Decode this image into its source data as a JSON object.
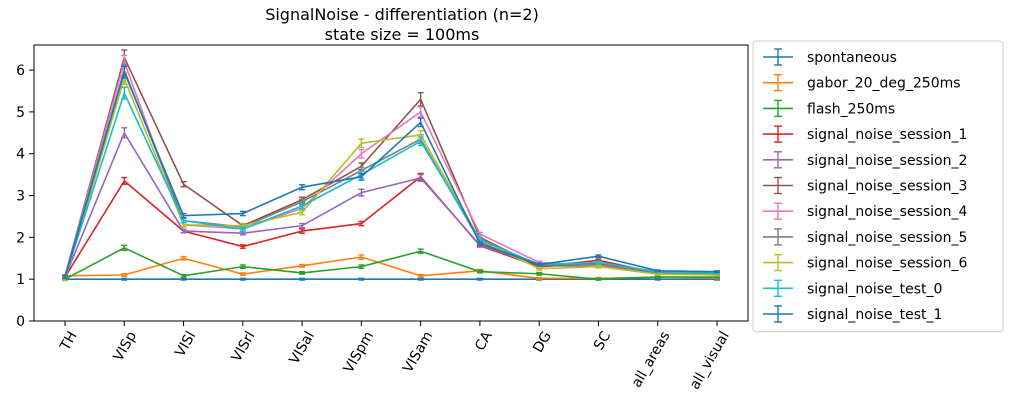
{
  "chart_data": {
    "type": "line",
    "title": "SignalNoise - differentiation (n=2)",
    "subtitle": "state size = 100ms",
    "xlabel": "",
    "ylabel": "",
    "categories": [
      "TH",
      "VISp",
      "VISl",
      "VISrl",
      "VISal",
      "VISpm",
      "VISam",
      "CA",
      "DG",
      "SC",
      "all_areas",
      "all_visual"
    ],
    "ylim": [
      0,
      6.6
    ],
    "yticks": [
      0,
      1,
      2,
      3,
      4,
      5,
      6
    ],
    "grid": false,
    "legend_position": "outside-right",
    "series": [
      {
        "name": "spontaneous",
        "color": "#1f77b4",
        "values": [
          1.0,
          1.0,
          1.0,
          1.0,
          1.0,
          1.0,
          1.0,
          1.0,
          1.0,
          1.0,
          1.0,
          1.0
        ],
        "errors": [
          0.02,
          0.02,
          0.02,
          0.02,
          0.02,
          0.02,
          0.02,
          0.02,
          0.02,
          0.02,
          0.02,
          0.02
        ]
      },
      {
        "name": "gabor_20_deg_250ms",
        "color": "#ff7f0e",
        "values": [
          1.08,
          1.1,
          1.5,
          1.12,
          1.32,
          1.53,
          1.08,
          1.2,
          1.02,
          1.02,
          1.05,
          1.03
        ],
        "errors": [
          0.02,
          0.03,
          0.04,
          0.03,
          0.03,
          0.05,
          0.03,
          0.03,
          0.02,
          0.02,
          0.02,
          0.02
        ]
      },
      {
        "name": "flash_250ms",
        "color": "#2ca02c",
        "values": [
          1.0,
          1.75,
          1.08,
          1.3,
          1.15,
          1.3,
          1.67,
          1.18,
          1.13,
          1.0,
          1.05,
          1.05
        ],
        "errors": [
          0.03,
          0.06,
          0.03,
          0.04,
          0.03,
          0.04,
          0.05,
          0.03,
          0.03,
          0.02,
          0.02,
          0.02
        ]
      },
      {
        "name": "signal_noise_session_1",
        "color": "#d62728",
        "values": [
          1.05,
          3.35,
          2.15,
          1.78,
          2.15,
          2.33,
          3.45,
          1.8,
          1.3,
          1.45,
          1.15,
          1.1
        ],
        "errors": [
          0.03,
          0.08,
          0.04,
          0.04,
          0.05,
          0.05,
          0.08,
          0.03,
          0.03,
          0.03,
          0.02,
          0.02
        ]
      },
      {
        "name": "signal_noise_session_2",
        "color": "#9467bd",
        "values": [
          1.05,
          4.5,
          2.15,
          2.1,
          2.28,
          3.07,
          3.42,
          1.82,
          1.33,
          1.3,
          1.15,
          1.12
        ],
        "errors": [
          0.03,
          0.12,
          0.04,
          0.04,
          0.05,
          0.08,
          0.08,
          0.03,
          0.03,
          0.03,
          0.02,
          0.02
        ]
      },
      {
        "name": "signal_noise_session_3",
        "color": "#8c564b",
        "values": [
          1.07,
          6.3,
          3.27,
          2.28,
          2.9,
          3.7,
          5.3,
          2.0,
          1.3,
          1.38,
          1.15,
          1.12
        ],
        "errors": [
          0.03,
          0.18,
          0.06,
          0.05,
          0.06,
          0.08,
          0.16,
          0.04,
          0.03,
          0.03,
          0.02,
          0.02
        ]
      },
      {
        "name": "signal_noise_session_4",
        "color": "#e377c2",
        "values": [
          1.05,
          6.2,
          2.3,
          2.2,
          2.7,
          4.0,
          5.0,
          2.08,
          1.4,
          1.33,
          1.15,
          1.12
        ],
        "errors": [
          0.03,
          0.15,
          0.05,
          0.05,
          0.06,
          0.1,
          0.12,
          0.04,
          0.03,
          0.03,
          0.02,
          0.02
        ]
      },
      {
        "name": "signal_noise_session_5",
        "color": "#7f7f7f",
        "values": [
          1.07,
          6.0,
          2.4,
          2.25,
          2.85,
          3.6,
          4.35,
          1.9,
          1.35,
          1.35,
          1.15,
          1.12
        ],
        "errors": [
          0.03,
          0.14,
          0.05,
          0.05,
          0.06,
          0.08,
          0.1,
          0.04,
          0.03,
          0.03,
          0.02,
          0.02
        ]
      },
      {
        "name": "signal_noise_session_6",
        "color": "#bcbd22",
        "values": [
          1.0,
          5.8,
          2.3,
          2.28,
          2.6,
          4.25,
          4.45,
          1.95,
          1.25,
          1.3,
          1.12,
          1.1
        ],
        "errors": [
          0.03,
          0.14,
          0.05,
          0.05,
          0.06,
          0.1,
          0.1,
          0.04,
          0.03,
          0.03,
          0.02,
          0.02
        ]
      },
      {
        "name": "signal_noise_test_0",
        "color": "#17becf",
        "values": [
          1.05,
          5.45,
          2.4,
          2.2,
          2.75,
          3.5,
          4.3,
          1.95,
          1.35,
          1.4,
          1.18,
          1.15
        ],
        "errors": [
          0.03,
          0.14,
          0.05,
          0.05,
          0.06,
          0.08,
          0.1,
          0.04,
          0.03,
          0.03,
          0.02,
          0.02
        ]
      },
      {
        "name": "signal_noise_test_1",
        "color": "#1f77b4",
        "values": [
          1.05,
          5.95,
          2.52,
          2.57,
          3.2,
          3.45,
          4.75,
          1.85,
          1.35,
          1.55,
          1.2,
          1.18
        ],
        "errors": [
          0.03,
          0.14,
          0.05,
          0.05,
          0.06,
          0.08,
          0.1,
          0.04,
          0.03,
          0.03,
          0.02,
          0.02
        ]
      }
    ]
  }
}
